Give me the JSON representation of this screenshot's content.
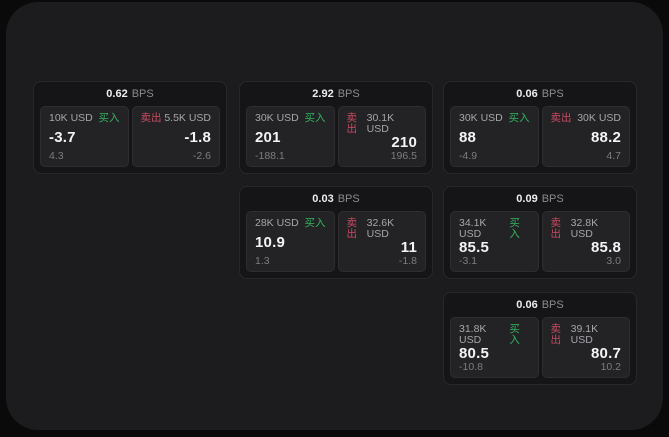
{
  "labels": {
    "buy": "买入",
    "sell": "卖出",
    "bps_unit": "BPS"
  },
  "colors": {
    "buy_green": "#32b45f",
    "sell_red": "#ca4a60",
    "panel_background": "#1c1c1e",
    "card_background": "#151517",
    "pane_background": "#232326"
  },
  "cards": [
    {
      "bps": "0.62",
      "buy": {
        "amount": "10K USD",
        "price": "-3.7",
        "delta": "4.3"
      },
      "sell": {
        "amount": "5.5K USD",
        "price": "-1.8",
        "delta": "-2.6"
      }
    },
    {
      "bps": "2.92",
      "buy": {
        "amount": "30K USD",
        "price": "201",
        "delta": "-188.1"
      },
      "sell": {
        "amount": "30.1K USD",
        "price": "210",
        "delta": "196.5"
      }
    },
    {
      "bps": "0.06",
      "buy": {
        "amount": "30K USD",
        "price": "88",
        "delta": "-4.9"
      },
      "sell": {
        "amount": "30K USD",
        "price": "88.2",
        "delta": "4.7"
      }
    },
    {
      "bps": "0.03",
      "buy": {
        "amount": "28K USD",
        "price": "10.9",
        "delta": "1.3"
      },
      "sell": {
        "amount": "32.6K USD",
        "price": "11",
        "delta": "-1.8"
      }
    },
    {
      "bps": "0.09",
      "buy": {
        "amount": "34.1K USD",
        "price": "85.5",
        "delta": "-3.1"
      },
      "sell": {
        "amount": "32.8K USD",
        "price": "85.8",
        "delta": "3.0"
      }
    },
    {
      "bps": "0.06",
      "buy": {
        "amount": "31.8K USD",
        "price": "80.5",
        "delta": "-10.8"
      },
      "sell": {
        "amount": "39.1K USD",
        "price": "80.7",
        "delta": "10.2"
      }
    }
  ]
}
